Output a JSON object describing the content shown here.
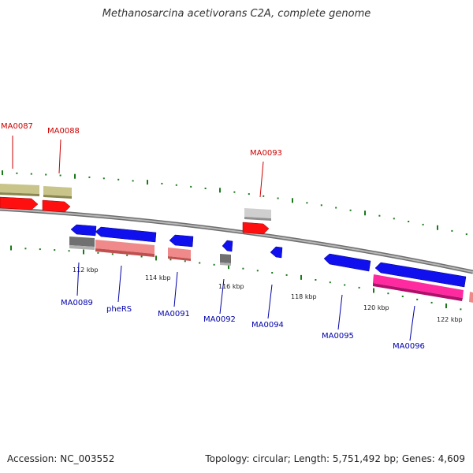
{
  "title": "Methanosarcina acetivorans C2A, complete genome",
  "footer": {
    "accession": "Accession: NC_003552",
    "summary": "Topology: circular; Length: 5,751,492 bp; Genes: 4,609"
  },
  "colors": {
    "forward_gene": "#ff0000",
    "reverse_gene": "#0000ff",
    "forward_label": "#cc0000",
    "reverse_label": "#0000aa",
    "backbone": "#888888",
    "tick": "#1a7a1a"
  },
  "scale_labels": [
    "112 kbp",
    "114 kbp",
    "116 kbp",
    "118 kbp",
    "120 kbp",
    "122 kbp"
  ],
  "forward_genes": [
    {
      "label": "MA0087"
    },
    {
      "label": "MA0088"
    },
    {
      "label": "MA0093"
    }
  ],
  "reverse_genes": [
    {
      "label": "MA0089"
    },
    {
      "label": "pheRS"
    },
    {
      "label": "MA0091"
    },
    {
      "label": "MA0092"
    },
    {
      "label": "MA0094"
    },
    {
      "label": "MA0095"
    },
    {
      "label": "MA0096"
    }
  ]
}
